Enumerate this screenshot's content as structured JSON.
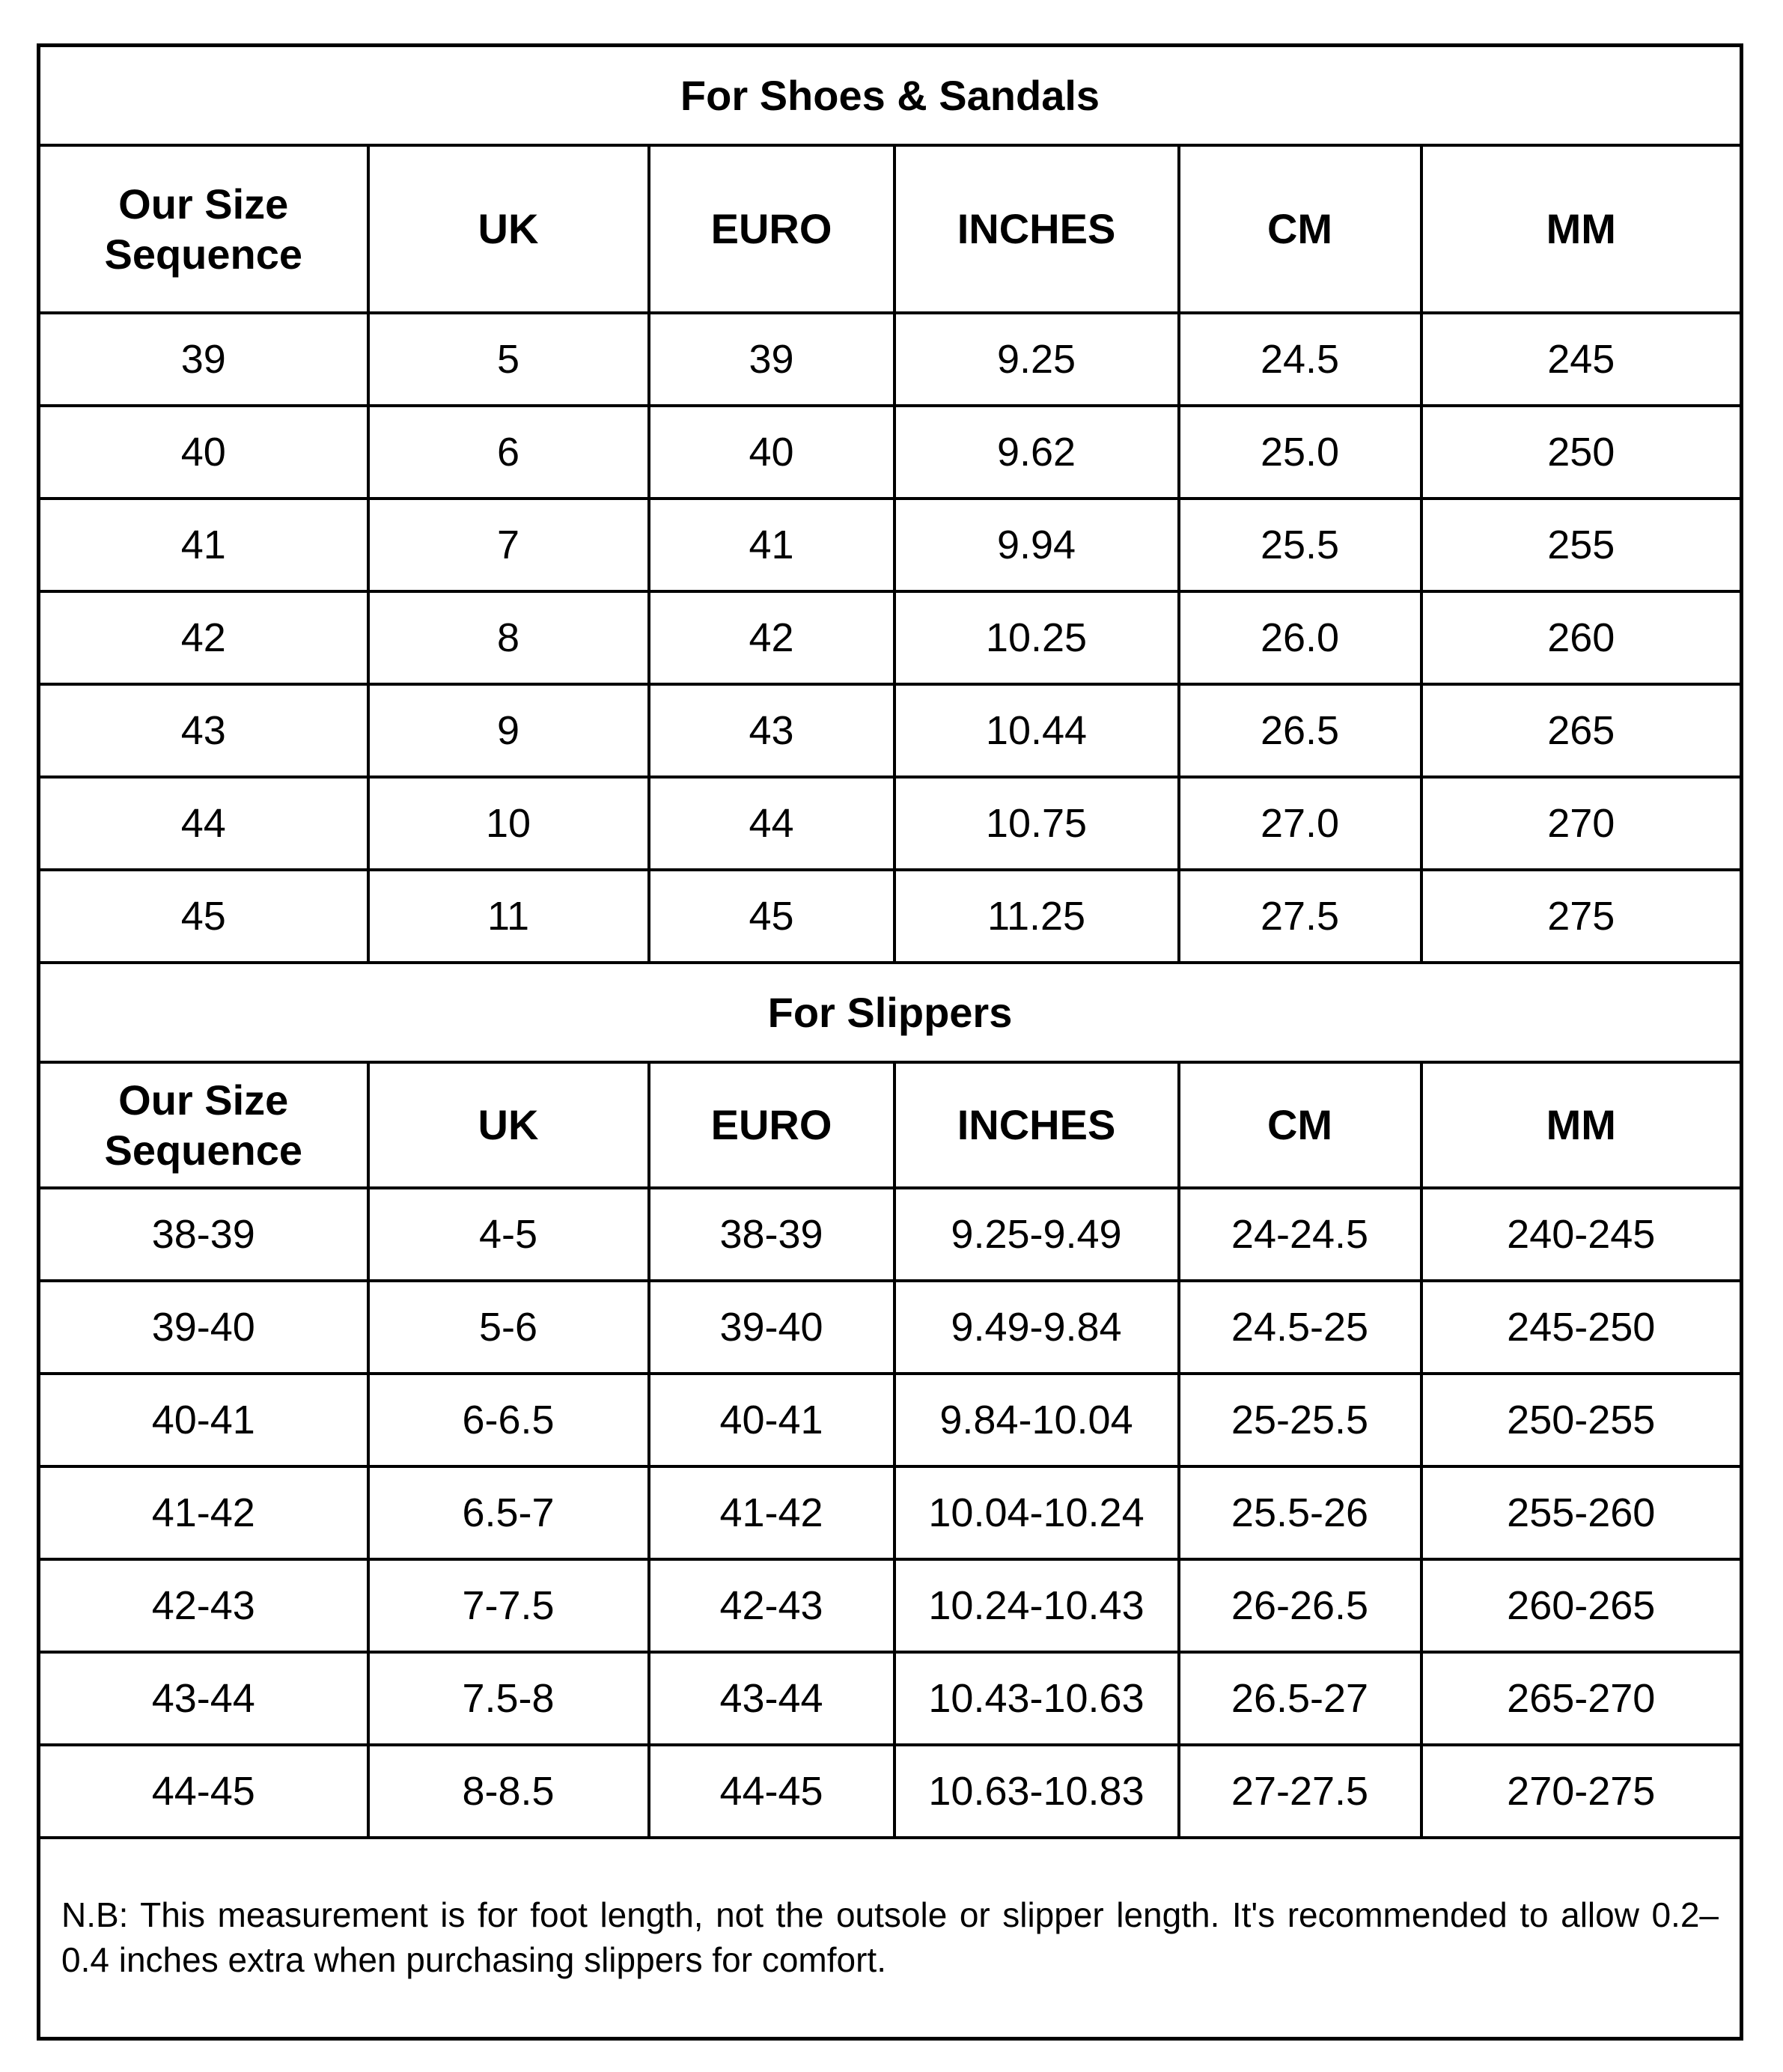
{
  "shoes": {
    "title": "For Shoes & Sandals",
    "headers": [
      "Our Size Sequence",
      "UK",
      "EURO",
      "INCHES",
      "CM",
      "MM"
    ],
    "rows": [
      [
        "39",
        "5",
        "39",
        "9.25",
        "24.5",
        "245"
      ],
      [
        "40",
        "6",
        "40",
        "9.62",
        "25.0",
        "250"
      ],
      [
        "41",
        "7",
        "41",
        "9.94",
        "25.5",
        "255"
      ],
      [
        "42",
        "8",
        "42",
        "10.25",
        "26.0",
        "260"
      ],
      [
        "43",
        "9",
        "43",
        "10.44",
        "26.5",
        "265"
      ],
      [
        "44",
        "10",
        "44",
        "10.75",
        "27.0",
        "270"
      ],
      [
        "45",
        "11",
        "45",
        "11.25",
        "27.5",
        "275"
      ]
    ]
  },
  "slippers": {
    "title": "For Slippers",
    "headers": [
      "Our Size Sequence",
      "UK",
      "EURO",
      "INCHES",
      "CM",
      "MM"
    ],
    "rows": [
      [
        "38-39",
        "4-5",
        "38-39",
        "9.25-9.49",
        "24-24.5",
        "240-245"
      ],
      [
        "39-40",
        "5-6",
        "39-40",
        "9.49-9.84",
        "24.5-25",
        "245-250"
      ],
      [
        "40-41",
        "6-6.5",
        "40-41",
        "9.84-10.04",
        "25-25.5",
        "250-255"
      ],
      [
        "41-42",
        "6.5-7",
        "41-42",
        "10.04-10.24",
        "25.5-26",
        "255-260"
      ],
      [
        "42-43",
        "7-7.5",
        "42-43",
        "10.24-10.43",
        "26-26.5",
        "260-265"
      ],
      [
        "43-44",
        "7.5-8",
        "43-44",
        "10.43-10.63",
        "26.5-27",
        "265-270"
      ],
      [
        "44-45",
        "8-8.5",
        "44-45",
        "10.63-10.83",
        "27-27.5",
        "270-275"
      ]
    ]
  },
  "note": "N.B: This measurement is for foot length, not the outsole or slipper length. It's recommended to allow 0.2–0.4 inches extra when purchasing slippers for comfort."
}
